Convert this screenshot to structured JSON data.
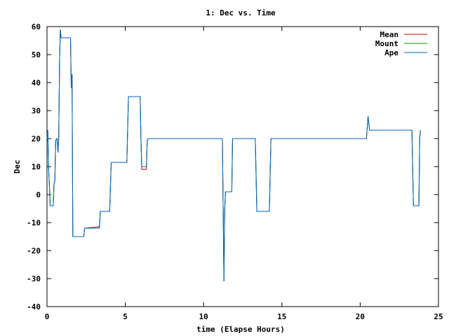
{
  "chart_data": {
    "type": "line",
    "title": "1: Dec vs. Time",
    "xlabel": "time (Elapse Hours)",
    "ylabel": "Dec",
    "xlim": [
      0,
      25
    ],
    "ylim": [
      -40,
      60
    ],
    "xticks": [
      0,
      5,
      10,
      15,
      20,
      25
    ],
    "yticks": [
      -40,
      -30,
      -20,
      -10,
      0,
      10,
      20,
      30,
      40,
      50,
      60
    ],
    "grid": false,
    "legend_position": "top-right",
    "series": [
      {
        "name": "Mean",
        "color": "#cc0000",
        "points": [
          [
            0.0,
            20
          ],
          [
            0.05,
            23
          ],
          [
            0.1,
            10
          ],
          [
            0.15,
            4
          ],
          [
            0.2,
            -4
          ],
          [
            0.4,
            -4
          ],
          [
            0.45,
            4
          ],
          [
            0.5,
            5
          ],
          [
            0.55,
            19
          ],
          [
            0.6,
            20
          ],
          [
            0.65,
            20
          ],
          [
            0.7,
            15
          ],
          [
            0.75,
            20
          ],
          [
            0.8,
            48
          ],
          [
            0.85,
            59
          ],
          [
            0.9,
            56
          ],
          [
            1.45,
            56
          ],
          [
            1.5,
            56
          ],
          [
            1.55,
            38
          ],
          [
            1.6,
            43
          ],
          [
            1.65,
            -15
          ],
          [
            2.35,
            -15
          ],
          [
            2.4,
            -12
          ],
          [
            3.3,
            -11.5
          ],
          [
            3.35,
            -11
          ],
          [
            3.4,
            -6
          ],
          [
            3.95,
            -6
          ],
          [
            4.0,
            -6
          ],
          [
            4.1,
            11.5
          ],
          [
            5.05,
            11.5
          ],
          [
            5.1,
            11.5
          ],
          [
            5.2,
            35
          ],
          [
            5.95,
            35
          ],
          [
            6.0,
            20
          ],
          [
            6.05,
            9
          ],
          [
            6.35,
            9
          ],
          [
            6.4,
            19
          ],
          [
            6.45,
            20
          ],
          [
            11.2,
            20
          ],
          [
            11.3,
            -31
          ],
          [
            11.35,
            -5
          ],
          [
            11.4,
            1
          ],
          [
            11.8,
            1
          ],
          [
            11.85,
            20
          ],
          [
            13.3,
            20
          ],
          [
            13.4,
            -6
          ],
          [
            14.2,
            -6
          ],
          [
            14.3,
            20
          ],
          [
            20.4,
            20
          ],
          [
            20.45,
            24
          ],
          [
            20.5,
            28
          ],
          [
            20.6,
            23
          ],
          [
            23.3,
            23
          ],
          [
            23.4,
            -4
          ],
          [
            23.75,
            -4
          ],
          [
            23.8,
            20
          ],
          [
            23.85,
            23
          ]
        ]
      },
      {
        "name": "Mount",
        "color": "#009900",
        "points": [
          [
            0.0,
            20
          ],
          [
            0.05,
            23
          ],
          [
            0.1,
            10
          ],
          [
            0.15,
            4
          ],
          [
            0.2,
            -4
          ],
          [
            0.4,
            -4
          ],
          [
            0.45,
            4
          ],
          [
            0.5,
            5
          ],
          [
            0.55,
            19
          ],
          [
            0.6,
            20
          ],
          [
            0.65,
            20
          ],
          [
            0.7,
            15
          ],
          [
            0.75,
            20
          ],
          [
            0.8,
            48
          ],
          [
            0.85,
            59
          ],
          [
            0.9,
            56
          ],
          [
            1.45,
            56
          ],
          [
            1.5,
            56
          ],
          [
            1.55,
            38
          ],
          [
            1.6,
            43
          ],
          [
            1.65,
            -15
          ],
          [
            2.35,
            -15
          ],
          [
            2.4,
            -12
          ],
          [
            3.3,
            -12
          ],
          [
            3.35,
            -12
          ],
          [
            3.4,
            -6
          ],
          [
            3.95,
            -6
          ],
          [
            4.0,
            -6
          ],
          [
            4.1,
            11.5
          ],
          [
            5.05,
            11.5
          ],
          [
            5.1,
            11.5
          ],
          [
            5.2,
            35
          ],
          [
            5.95,
            35
          ],
          [
            6.0,
            20
          ],
          [
            6.05,
            10
          ],
          [
            6.35,
            10
          ],
          [
            6.4,
            19
          ],
          [
            6.45,
            20
          ],
          [
            11.2,
            20
          ],
          [
            11.3,
            -31
          ],
          [
            11.35,
            -5
          ],
          [
            11.4,
            1
          ],
          [
            11.8,
            1
          ],
          [
            11.85,
            20
          ],
          [
            13.3,
            20
          ],
          [
            13.4,
            -6
          ],
          [
            14.2,
            -6
          ],
          [
            14.3,
            20
          ],
          [
            20.4,
            20
          ],
          [
            20.45,
            24
          ],
          [
            20.5,
            28
          ],
          [
            20.6,
            23
          ],
          [
            23.3,
            23
          ],
          [
            23.4,
            -4
          ],
          [
            23.75,
            -4
          ],
          [
            23.8,
            20
          ],
          [
            23.85,
            23
          ]
        ]
      },
      {
        "name": "Ape",
        "color": "#0066cc",
        "points": [
          [
            0.0,
            20
          ],
          [
            0.05,
            23
          ],
          [
            0.1,
            10
          ],
          [
            0.15,
            4
          ],
          [
            0.2,
            -4
          ],
          [
            0.4,
            -4
          ],
          [
            0.45,
            4
          ],
          [
            0.5,
            5
          ],
          [
            0.55,
            19
          ],
          [
            0.6,
            20
          ],
          [
            0.65,
            20
          ],
          [
            0.7,
            15
          ],
          [
            0.75,
            20
          ],
          [
            0.8,
            48
          ],
          [
            0.85,
            59
          ],
          [
            0.9,
            56
          ],
          [
            1.45,
            56
          ],
          [
            1.5,
            56
          ],
          [
            1.55,
            38
          ],
          [
            1.6,
            43
          ],
          [
            1.65,
            -15
          ],
          [
            2.35,
            -15
          ],
          [
            2.4,
            -12
          ],
          [
            3.3,
            -12
          ],
          [
            3.35,
            -12
          ],
          [
            3.4,
            -6
          ],
          [
            3.95,
            -6
          ],
          [
            4.0,
            -6
          ],
          [
            4.1,
            11.5
          ],
          [
            5.05,
            11.5
          ],
          [
            5.1,
            11.5
          ],
          [
            5.2,
            35
          ],
          [
            5.95,
            35
          ],
          [
            6.0,
            20
          ],
          [
            6.05,
            10
          ],
          [
            6.35,
            10
          ],
          [
            6.4,
            19
          ],
          [
            6.45,
            20
          ],
          [
            11.2,
            20
          ],
          [
            11.3,
            -31
          ],
          [
            11.35,
            -5
          ],
          [
            11.4,
            1
          ],
          [
            11.8,
            1
          ],
          [
            11.85,
            20
          ],
          [
            13.3,
            20
          ],
          [
            13.4,
            -6
          ],
          [
            14.2,
            -6
          ],
          [
            14.3,
            20
          ],
          [
            20.4,
            20
          ],
          [
            20.45,
            24
          ],
          [
            20.5,
            28
          ],
          [
            20.6,
            23
          ],
          [
            23.3,
            23
          ],
          [
            23.4,
            -4
          ],
          [
            23.75,
            -4
          ],
          [
            23.8,
            20
          ],
          [
            23.85,
            23
          ]
        ]
      }
    ]
  }
}
